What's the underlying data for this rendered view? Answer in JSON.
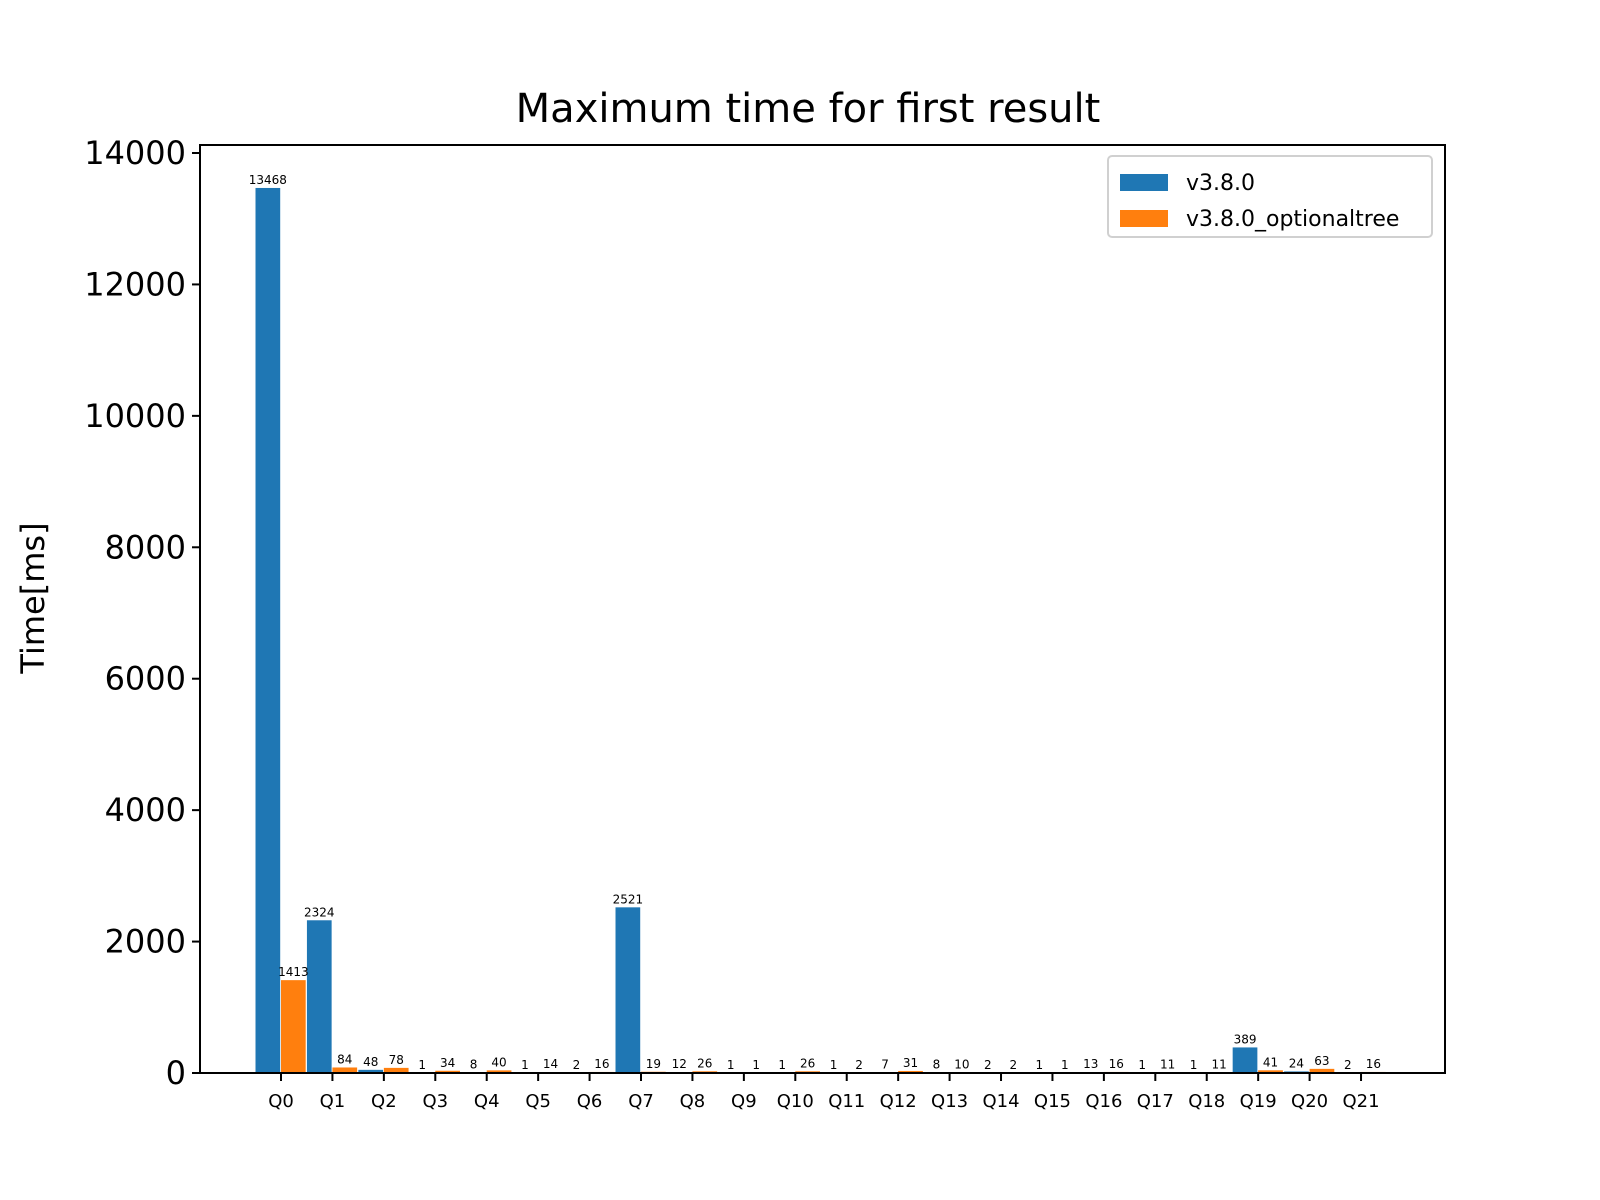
{
  "chart_data": {
    "type": "bar",
    "title": "Maximum time for first result",
    "xlabel": "",
    "ylabel": "Time[ms]",
    "ylim": [
      0,
      14000
    ],
    "yticks": [
      0,
      2000,
      4000,
      6000,
      8000,
      10000,
      12000,
      14000
    ],
    "categories": [
      "Q0",
      "Q1",
      "Q2",
      "Q3",
      "Q4",
      "Q5",
      "Q6",
      "Q7",
      "Q8",
      "Q9",
      "Q10",
      "Q11",
      "Q12",
      "Q13",
      "Q14",
      "Q15",
      "Q16",
      "Q17",
      "Q18",
      "Q19",
      "Q20",
      "Q21"
    ],
    "series": [
      {
        "name": "v3.8.0",
        "color": "#1f77b4",
        "values": [
          13468,
          2324,
          48,
          1,
          8,
          1,
          2,
          2521,
          12,
          1,
          1,
          1,
          7,
          8,
          2,
          1,
          13,
          1,
          1,
          389,
          24,
          2
        ]
      },
      {
        "name": "v3.8.0_optionaltree",
        "color": "#ff7f0e",
        "values": [
          1413,
          84,
          78,
          34,
          40,
          14,
          16,
          19,
          26,
          1,
          26,
          2,
          31,
          10,
          2,
          1,
          16,
          11,
          11,
          41,
          63,
          16
        ]
      }
    ],
    "legend_position": "top-right",
    "grid": false
  }
}
